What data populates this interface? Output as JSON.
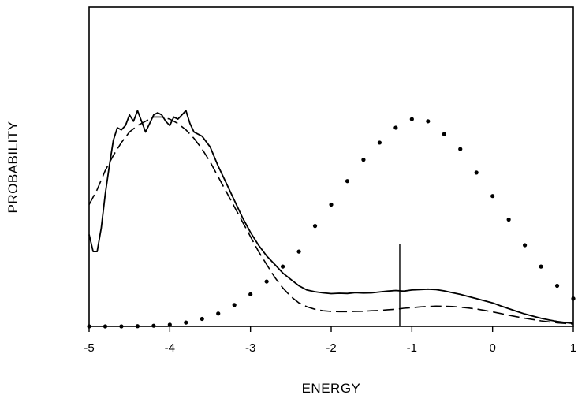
{
  "chart_data": {
    "type": "line",
    "title": "",
    "xlabel": "ENERGY",
    "ylabel": "PROBABILITY",
    "xlim": [
      -5,
      1
    ],
    "ylim": [
      0,
      1
    ],
    "x_ticks": [
      -5,
      -4,
      -3,
      -2,
      -1,
      0,
      1
    ],
    "x_tick_labels": [
      "-5",
      "-4",
      "-3",
      "-2",
      "-1",
      "0",
      "1"
    ],
    "y_tick_labels": [],
    "grid": false,
    "legend": "none",
    "vertical_marker_x": -1.15,
    "series": [
      {
        "style": "solid",
        "color": "#000000",
        "x": [
          -5.0,
          -4.95,
          -4.9,
          -4.85,
          -4.8,
          -4.75,
          -4.7,
          -4.65,
          -4.6,
          -4.55,
          -4.5,
          -4.45,
          -4.4,
          -4.35,
          -4.3,
          -4.25,
          -4.2,
          -4.15,
          -4.1,
          -4.05,
          -4.0,
          -3.95,
          -3.9,
          -3.85,
          -3.8,
          -3.75,
          -3.7,
          -3.6,
          -3.5,
          -3.4,
          -3.3,
          -3.2,
          -3.1,
          -3.0,
          -2.9,
          -2.8,
          -2.7,
          -2.6,
          -2.5,
          -2.4,
          -2.3,
          -2.2,
          -2.1,
          -2.0,
          -1.9,
          -1.8,
          -1.7,
          -1.6,
          -1.5,
          -1.4,
          -1.3,
          -1.2,
          -1.1,
          -1.0,
          -0.9,
          -0.8,
          -0.7,
          -0.6,
          -0.5,
          -0.4,
          -0.3,
          -0.2,
          -0.1,
          0.0,
          0.1,
          0.2,
          0.3,
          0.4,
          0.5,
          0.6,
          0.7,
          0.8,
          0.9,
          1.0
        ],
        "y": [
          0.43,
          0.35,
          0.35,
          0.46,
          0.62,
          0.75,
          0.87,
          0.93,
          0.92,
          0.94,
          0.99,
          0.96,
          1.01,
          0.96,
          0.91,
          0.95,
          0.99,
          1.0,
          0.99,
          0.96,
          0.94,
          0.98,
          0.97,
          0.99,
          1.01,
          0.95,
          0.91,
          0.89,
          0.84,
          0.75,
          0.67,
          0.59,
          0.51,
          0.44,
          0.38,
          0.33,
          0.29,
          0.25,
          0.22,
          0.19,
          0.17,
          0.162,
          0.157,
          0.153,
          0.155,
          0.154,
          0.158,
          0.156,
          0.157,
          0.161,
          0.165,
          0.168,
          0.165,
          0.17,
          0.172,
          0.174,
          0.172,
          0.166,
          0.158,
          0.15,
          0.14,
          0.13,
          0.12,
          0.11,
          0.096,
          0.083,
          0.07,
          0.058,
          0.048,
          0.038,
          0.03,
          0.023,
          0.018,
          0.014
        ]
      },
      {
        "style": "dashed",
        "color": "#000000",
        "x": [
          -5.0,
          -4.9,
          -4.8,
          -4.7,
          -4.6,
          -4.5,
          -4.4,
          -4.3,
          -4.2,
          -4.1,
          -4.0,
          -3.9,
          -3.8,
          -3.7,
          -3.6,
          -3.5,
          -3.4,
          -3.3,
          -3.2,
          -3.1,
          -3.0,
          -2.9,
          -2.8,
          -2.7,
          -2.6,
          -2.5,
          -2.4,
          -2.3,
          -2.2,
          -2.1,
          -2.0,
          -1.9,
          -1.8,
          -1.7,
          -1.6,
          -1.5,
          -1.4,
          -1.3,
          -1.2,
          -1.1,
          -1.0,
          -0.9,
          -0.8,
          -0.7,
          -0.6,
          -0.5,
          -0.4,
          -0.3,
          -0.2,
          -0.1,
          0.0,
          0.1,
          0.2,
          0.3,
          0.4,
          0.5,
          0.6,
          0.7,
          0.8,
          0.9,
          1.0
        ],
        "y": [
          0.57,
          0.64,
          0.73,
          0.8,
          0.86,
          0.91,
          0.94,
          0.96,
          0.98,
          0.98,
          0.97,
          0.95,
          0.92,
          0.88,
          0.83,
          0.77,
          0.7,
          0.63,
          0.56,
          0.49,
          0.42,
          0.35,
          0.29,
          0.23,
          0.18,
          0.14,
          0.11,
          0.092,
          0.08,
          0.073,
          0.07,
          0.069,
          0.069,
          0.07,
          0.071,
          0.073,
          0.074,
          0.078,
          0.08,
          0.085,
          0.088,
          0.091,
          0.093,
          0.095,
          0.094,
          0.093,
          0.09,
          0.086,
          0.081,
          0.075,
          0.068,
          0.06,
          0.052,
          0.045,
          0.038,
          0.032,
          0.026,
          0.021,
          0.017,
          0.014,
          0.011
        ]
      },
      {
        "style": "dotted",
        "color": "#000000",
        "x": [
          -5.0,
          -4.8,
          -4.6,
          -4.4,
          -4.2,
          -4.0,
          -3.8,
          -3.6,
          -3.4,
          -3.2,
          -3.0,
          -2.8,
          -2.6,
          -2.4,
          -2.2,
          -2.0,
          -1.8,
          -1.6,
          -1.4,
          -1.2,
          -1.0,
          -0.8,
          -0.6,
          -0.4,
          -0.2,
          0.0,
          0.2,
          0.4,
          0.6,
          0.8,
          1.0
        ],
        "y": [
          0.0,
          0.0,
          0.0,
          0.001,
          0.003,
          0.008,
          0.018,
          0.035,
          0.06,
          0.1,
          0.15,
          0.21,
          0.28,
          0.35,
          0.47,
          0.57,
          0.68,
          0.78,
          0.86,
          0.93,
          0.97,
          0.96,
          0.9,
          0.83,
          0.72,
          0.61,
          0.5,
          0.38,
          0.28,
          0.19,
          0.13
        ]
      }
    ]
  }
}
